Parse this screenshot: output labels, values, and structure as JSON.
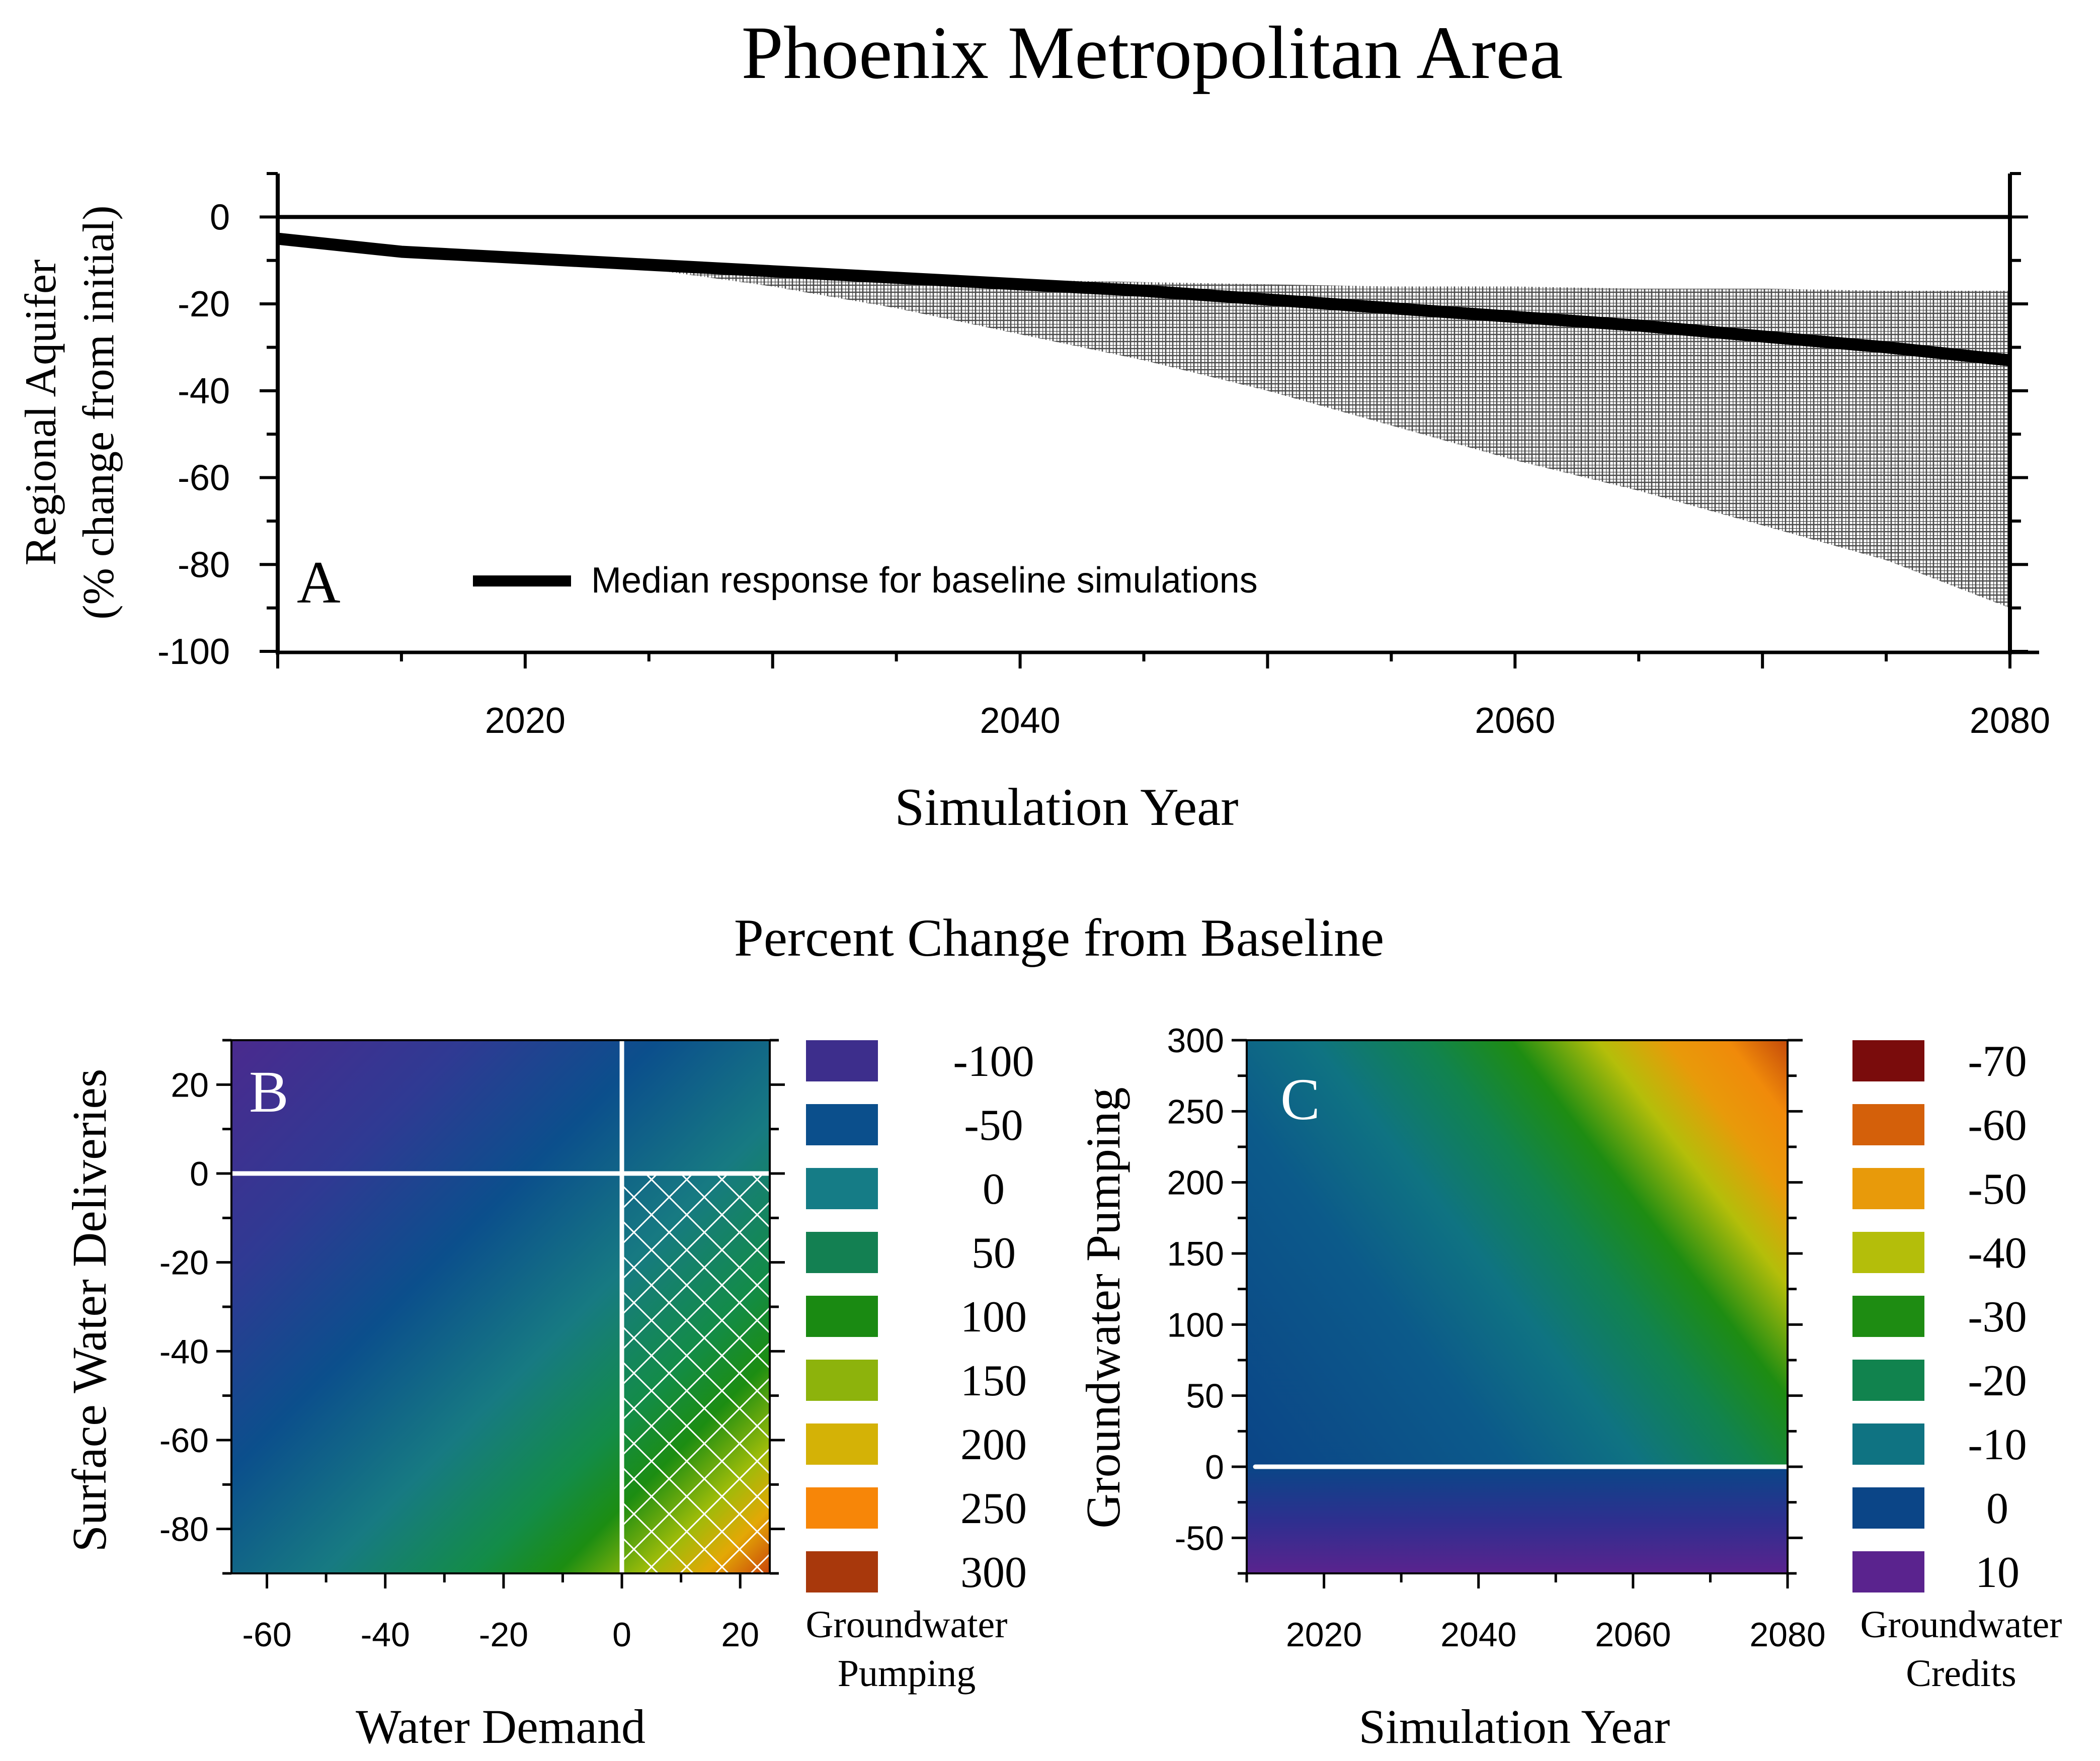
{
  "title": "Phoenix Metropolitan Area",
  "section_title": "Percent Change from Baseline",
  "chart_data": [
    {
      "panel": "A",
      "type": "area",
      "xlabel": "Simulation Year",
      "ylabel_line1": "Regional Aquifer",
      "ylabel_line2": "(% change from initial)",
      "xlim": [
        2010,
        2080
      ],
      "ylim": [
        -100,
        10
      ],
      "x_ticks": [
        2020,
        2040,
        2060,
        2080
      ],
      "y_ticks": [
        0,
        -20,
        -40,
        -60,
        -80,
        -100
      ],
      "legend": "Median response for baseline simulations",
      "legend_position": "bottom-left",
      "reference_line_y": 0,
      "series": [
        {
          "name": "Median response for baseline simulations",
          "x": [
            2010,
            2015,
            2020,
            2025,
            2030,
            2035,
            2040,
            2045,
            2050,
            2055,
            2060,
            2065,
            2070,
            2075,
            2080
          ],
          "y": [
            -5,
            -8,
            -9.5,
            -11,
            -12.5,
            -14,
            -15.5,
            -17,
            -19,
            -21,
            -23,
            -25,
            -27.5,
            -30,
            -33
          ]
        }
      ],
      "band": {
        "x": [
          2010,
          2015,
          2020,
          2025,
          2030,
          2035,
          2040,
          2045,
          2050,
          2055,
          2060,
          2065,
          2070,
          2075,
          2080
        ],
        "upper": [
          -5,
          -8,
          -9.5,
          -10.5,
          -12,
          -13.5,
          -14.5,
          -15,
          -15.5,
          -16,
          -16,
          -16.5,
          -16.5,
          -17,
          -17
        ],
        "lower": [
          -5,
          -8,
          -9.5,
          -12,
          -16,
          -21,
          -27,
          -33,
          -40,
          -48,
          -56,
          -63,
          -71,
          -79,
          -90
        ]
      }
    },
    {
      "panel": "B",
      "type": "heatmap",
      "xlabel": "Water Demand",
      "ylabel": "Surface Water Deliveries",
      "xlim": [
        -66,
        25
      ],
      "ylim": [
        -90,
        30
      ],
      "x_ticks": [
        -60,
        -40,
        -20,
        0,
        20
      ],
      "y_ticks": [
        20,
        0,
        -20,
        -40,
        -60,
        -80
      ],
      "reference_lines": {
        "x": 0,
        "y": 0
      },
      "hatched_region": "x > 0 and y < 0",
      "colorbar_title_line1": "Groundwater",
      "colorbar_title_line2": "Pumping",
      "colorbar": [
        {
          "label": "-100",
          "color": "#3d2e8c"
        },
        {
          "label": "-50",
          "color": "#0b4f8c"
        },
        {
          "label": "0",
          "color": "#157c86"
        },
        {
          "label": "50",
          "color": "#138052"
        },
        {
          "label": "100",
          "color": "#1a8a12"
        },
        {
          "label": "150",
          "color": "#8db30c"
        },
        {
          "label": "200",
          "color": "#d4b206"
        },
        {
          "label": "250",
          "color": "#f78608"
        },
        {
          "label": "300",
          "color": "#a8380c"
        }
      ]
    },
    {
      "panel": "C",
      "type": "heatmap",
      "xlabel": "Simulation Year",
      "ylabel": "Groundwater Pumping",
      "xlim": [
        2010,
        2080
      ],
      "ylim": [
        -75,
        300
      ],
      "x_ticks": [
        2020,
        2040,
        2060,
        2080
      ],
      "y_ticks": [
        300,
        250,
        200,
        150,
        100,
        50,
        0,
        -50
      ],
      "reference_lines": {
        "y": 0
      },
      "colorbar_title_line1": "Groundwater",
      "colorbar_title_line2": "Credits",
      "colorbar": [
        {
          "label": "-70",
          "color": "#7a0c0c"
        },
        {
          "label": "-60",
          "color": "#d4600a"
        },
        {
          "label": "-50",
          "color": "#e89a0a"
        },
        {
          "label": "-40",
          "color": "#b4be0a"
        },
        {
          "label": "-30",
          "color": "#1e8c12"
        },
        {
          "label": "-20",
          "color": "#11834e"
        },
        {
          "label": "-10",
          "color": "#0f7382"
        },
        {
          "label": "0",
          "color": "#0b4587"
        },
        {
          "label": "10",
          "color": "#5a238e"
        }
      ]
    }
  ]
}
